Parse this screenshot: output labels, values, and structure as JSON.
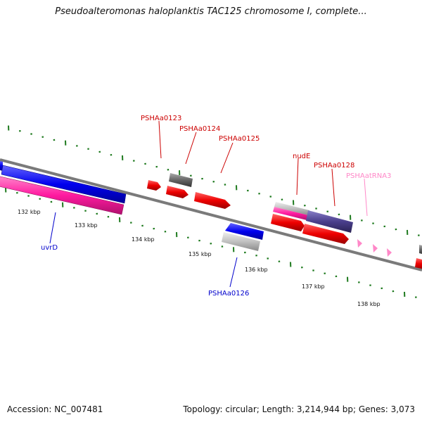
{
  "title": "Pseudoalteromonas haloplanktis TAC125 chromosome I, complete...",
  "footer": {
    "accession": "Accession: NC_007481",
    "info": "Topology: circular; Length: 3,214,944 bp; Genes: 3,073"
  },
  "colors": {
    "backbone": "#7a7a7a",
    "tick": "#1e7a1e",
    "red_gene": "#ee0000",
    "blue_gene": "#0000ee",
    "pink_gene": "#ff1aa0",
    "gray_gene": "#666666",
    "light_gray_gene": "#bdbdbd",
    "purple_gene": "#4a3f8c",
    "trna": "#ff88c8",
    "label_red": "#cc0000",
    "label_blue": "#0000cc",
    "label_pink": "#ff88c8"
  },
  "scale_labels": [
    "132 kbp",
    "133 kbp",
    "134 kbp",
    "135 kbp",
    "136 kbp",
    "137 kbp",
    "138 kbp"
  ],
  "gene_labels": [
    {
      "id": "uvrd",
      "text": "uvrD",
      "color": "label_blue"
    },
    {
      "id": "psha0123",
      "text": "PSHAa0123",
      "color": "label_red"
    },
    {
      "id": "psha0124",
      "text": "PSHAa0124",
      "color": "label_red"
    },
    {
      "id": "psha0125",
      "text": "PSHAa0125",
      "color": "label_red"
    },
    {
      "id": "psha0126",
      "text": "PSHAa0126",
      "color": "label_blue"
    },
    {
      "id": "nude",
      "text": "nudE",
      "color": "label_red"
    },
    {
      "id": "psha0128",
      "text": "PSHAa0128",
      "color": "label_red"
    },
    {
      "id": "pshaatrna3",
      "text": "PSHAatRNA3",
      "color": "label_pink"
    }
  ]
}
